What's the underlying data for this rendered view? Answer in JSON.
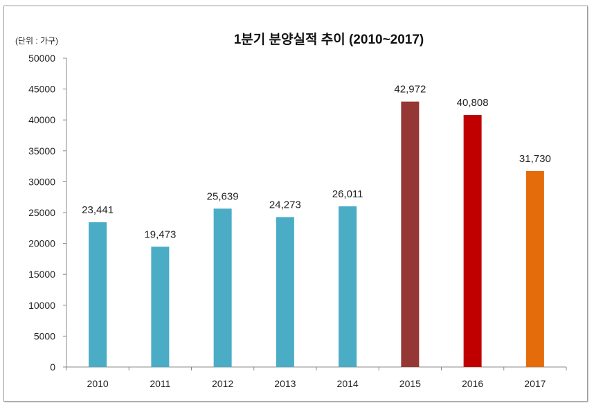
{
  "chart_data": {
    "type": "bar",
    "title": "1분기 분양실적 추이 (2010~2017)",
    "unit_label": "(단위 : 가구)",
    "xlabel": "",
    "ylabel": "",
    "categories": [
      "2010",
      "2011",
      "2012",
      "2013",
      "2014",
      "2015",
      "2016",
      "2017"
    ],
    "values": [
      23441,
      19473,
      25639,
      24273,
      26011,
      42972,
      40808,
      31730
    ],
    "data_labels": [
      "23,441",
      "19,473",
      "25,639",
      "24,273",
      "26,011",
      "42,972",
      "40,808",
      "31,730"
    ],
    "colors": [
      "#4BACC6",
      "#4BACC6",
      "#4BACC6",
      "#4BACC6",
      "#4BACC6",
      "#953735",
      "#C00000",
      "#E46C0A"
    ],
    "ylim": [
      0,
      50000
    ],
    "yticks": [
      "0",
      "5000",
      "10000",
      "15000",
      "20000",
      "25000",
      "30000",
      "35000",
      "40000",
      "45000",
      "50000"
    ],
    "grid": false,
    "legend": "none"
  }
}
